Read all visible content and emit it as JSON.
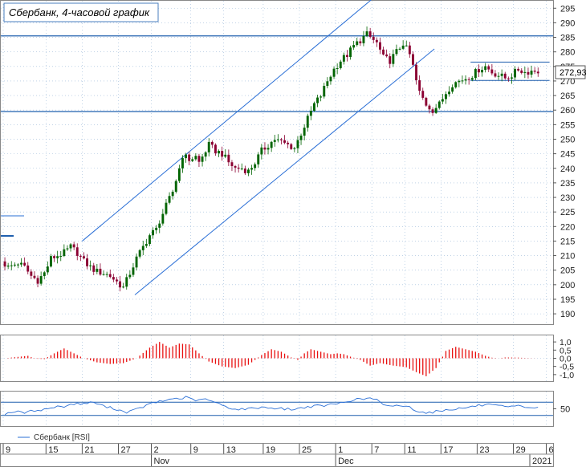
{
  "chart_data": {
    "type": "candlestick",
    "title": "Сбербанк, 4-часовой график",
    "instrument": "Сбербанк",
    "last_price_label": "272,93",
    "price_axis": {
      "min": 187,
      "max": 297,
      "ticks": [
        190,
        195,
        200,
        205,
        210,
        215,
        220,
        225,
        230,
        235,
        240,
        245,
        250,
        255,
        260,
        265,
        270,
        275,
        280,
        285,
        290,
        295
      ]
    },
    "horizontal_levels": [
      285.5,
      259.5
    ],
    "range_levels": [
      276.5,
      270.2
    ],
    "channel": {
      "upper": [
        [
          24,
          215
        ],
        [
          113,
          299
        ]
      ],
      "lower": [
        [
          40,
          196.5
        ],
        [
          131,
          281
        ]
      ]
    },
    "anchors": [
      [
        0,
        208
      ],
      [
        2,
        206
      ],
      [
        5,
        207.5
      ],
      [
        7,
        206
      ],
      [
        9,
        203
      ],
      [
        11,
        201.5
      ],
      [
        13,
        204
      ],
      [
        15,
        209
      ],
      [
        17,
        210
      ],
      [
        19,
        211
      ],
      [
        21,
        213
      ],
      [
        23,
        211
      ],
      [
        25,
        208
      ],
      [
        27,
        206
      ],
      [
        29,
        204.5
      ],
      [
        31,
        204
      ],
      [
        33,
        203
      ],
      [
        35,
        201
      ],
      [
        37,
        199
      ],
      [
        39,
        204
      ],
      [
        41,
        209
      ],
      [
        43,
        213
      ],
      [
        45,
        217
      ],
      [
        47,
        219
      ],
      [
        48,
        222
      ],
      [
        50,
        227
      ],
      [
        52,
        232
      ],
      [
        54,
        240
      ],
      [
        55,
        244.5
      ],
      [
        57,
        243
      ],
      [
        59,
        244
      ],
      [
        60,
        242
      ],
      [
        62,
        246
      ],
      [
        63,
        248
      ],
      [
        65,
        246
      ],
      [
        67,
        245
      ],
      [
        69,
        242
      ],
      [
        71,
        240
      ],
      [
        73,
        240
      ],
      [
        75,
        239
      ],
      [
        77,
        242
      ],
      [
        79,
        246
      ],
      [
        81,
        248
      ],
      [
        83,
        250
      ],
      [
        85,
        249
      ],
      [
        87,
        248
      ],
      [
        89,
        247
      ],
      [
        91,
        252
      ],
      [
        93,
        257
      ],
      [
        95,
        262
      ],
      [
        97,
        265
      ],
      [
        99,
        270
      ],
      [
        101,
        274
      ],
      [
        103,
        277
      ],
      [
        105,
        279
      ],
      [
        107,
        282
      ],
      [
        109,
        284
      ],
      [
        111,
        286
      ],
      [
        112,
        285
      ],
      [
        114,
        283
      ],
      [
        116,
        278
      ],
      [
        118,
        277
      ],
      [
        120,
        280
      ],
      [
        122,
        283
      ],
      [
        124,
        279
      ],
      [
        125,
        275
      ],
      [
        126,
        270
      ],
      [
        127,
        266
      ],
      [
        129,
        262
      ],
      [
        131,
        260
      ],
      [
        133,
        262
      ],
      [
        135,
        266
      ],
      [
        137,
        269
      ],
      [
        139,
        270
      ],
      [
        141,
        271
      ],
      [
        143,
        272
      ],
      [
        145,
        274
      ],
      [
        147,
        275
      ],
      [
        149,
        273
      ],
      [
        151,
        272
      ],
      [
        153,
        271
      ],
      [
        155,
        272
      ],
      [
        157,
        274
      ],
      [
        159,
        273
      ],
      [
        161,
        273.5
      ]
    ],
    "oscillator": {
      "min": -1.35,
      "max": 1.35,
      "ticks": [
        1.0,
        0.5,
        0.0,
        -0.5,
        -1.0
      ],
      "tick_labels": [
        "1,0",
        "0,5",
        "0,0",
        "-0,5",
        "-1,0"
      ],
      "knots": [
        [
          0,
          0
        ],
        [
          7,
          0.15
        ],
        [
          9,
          -0.02
        ],
        [
          12,
          -0.05
        ],
        [
          15,
          0.3
        ],
        [
          18,
          0.6
        ],
        [
          21,
          0.3
        ],
        [
          24,
          0
        ],
        [
          28,
          -0.25
        ],
        [
          32,
          -0.35
        ],
        [
          36,
          -0.3
        ],
        [
          40,
          0
        ],
        [
          44,
          0.65
        ],
        [
          47,
          1.0
        ],
        [
          50,
          0.65
        ],
        [
          53,
          0.9
        ],
        [
          56,
          0.85
        ],
        [
          59,
          0.3
        ],
        [
          62,
          -0.2
        ],
        [
          66,
          -0.5
        ],
        [
          70,
          -0.6
        ],
        [
          74,
          -0.4
        ],
        [
          78,
          0.2
        ],
        [
          81,
          0.55
        ],
        [
          84,
          0.4
        ],
        [
          87,
          0.05
        ],
        [
          89,
          -0.1
        ],
        [
          91,
          0.3
        ],
        [
          93,
          0.55
        ],
        [
          96,
          0.4
        ],
        [
          99,
          0.25
        ],
        [
          101,
          0.3
        ],
        [
          103,
          0.25
        ],
        [
          105,
          0.1
        ],
        [
          108,
          -0.1
        ],
        [
          111,
          -0.45
        ],
        [
          114,
          -0.3
        ],
        [
          118,
          -0.45
        ],
        [
          122,
          -0.55
        ],
        [
          125,
          -0.85
        ],
        [
          128,
          -1.1
        ],
        [
          131,
          -0.6
        ],
        [
          134,
          0.45
        ],
        [
          137,
          0.7
        ],
        [
          140,
          0.55
        ],
        [
          143,
          0.4
        ],
        [
          146,
          0.15
        ],
        [
          149,
          -0.02
        ],
        [
          152,
          0.05
        ],
        [
          156,
          0.04
        ],
        [
          158,
          0.02
        ],
        [
          162,
          0
        ]
      ]
    },
    "rsi": {
      "legend": "Сбербанк [RSI]",
      "min": 0,
      "max": 100,
      "upper_level": 70,
      "lower_level": 30,
      "tick_label": "50",
      "tick_value": 50,
      "knots": [
        [
          0,
          35
        ],
        [
          3,
          42
        ],
        [
          6,
          38
        ],
        [
          9,
          45
        ],
        [
          12,
          48
        ],
        [
          15,
          55
        ],
        [
          18,
          58
        ],
        [
          21,
          65
        ],
        [
          24,
          66
        ],
        [
          27,
          70
        ],
        [
          29,
          62
        ],
        [
          31,
          55
        ],
        [
          33,
          52
        ],
        [
          35,
          45
        ],
        [
          37,
          40
        ],
        [
          39,
          45
        ],
        [
          41,
          52
        ],
        [
          43,
          60
        ],
        [
          45,
          68
        ],
        [
          47,
          72
        ],
        [
          49,
          75
        ],
        [
          51,
          82
        ],
        [
          53,
          80
        ],
        [
          55,
          85
        ],
        [
          57,
          78
        ],
        [
          59,
          75
        ],
        [
          61,
          80
        ],
        [
          63,
          72
        ],
        [
          65,
          65
        ],
        [
          67,
          58
        ],
        [
          70,
          48
        ],
        [
          74,
          50
        ],
        [
          78,
          55
        ],
        [
          82,
          52
        ],
        [
          85,
          50
        ],
        [
          88,
          48
        ],
        [
          91,
          55
        ],
        [
          94,
          58
        ],
        [
          97,
          60
        ],
        [
          100,
          64
        ],
        [
          103,
          70
        ],
        [
          106,
          78
        ],
        [
          109,
          80
        ],
        [
          111,
          82
        ],
        [
          113,
          78
        ],
        [
          115,
          60
        ],
        [
          117,
          57
        ],
        [
          119,
          62
        ],
        [
          121,
          58
        ],
        [
          123,
          55
        ],
        [
          125,
          45
        ],
        [
          127,
          40
        ],
        [
          129,
          38
        ],
        [
          131,
          42
        ],
        [
          133,
          45
        ],
        [
          135,
          48
        ],
        [
          137,
          50
        ],
        [
          139,
          52
        ],
        [
          141,
          55
        ],
        [
          144,
          60
        ],
        [
          147,
          62
        ],
        [
          150,
          58
        ],
        [
          153,
          55
        ],
        [
          156,
          58
        ],
        [
          159,
          55
        ],
        [
          162,
          52
        ]
      ]
    },
    "x_axis": {
      "day_ticks": [
        {
          "label": "9",
          "bar": 0
        },
        {
          "label": "15",
          "bar": 13
        },
        {
          "label": "21",
          "bar": 24
        },
        {
          "label": "27",
          "bar": 35
        },
        {
          "label": "2",
          "bar": 45
        },
        {
          "label": "9",
          "bar": 57
        },
        {
          "label": "13",
          "bar": 67
        },
        {
          "label": "19",
          "bar": 79
        },
        {
          "label": "25",
          "bar": 90
        },
        {
          "label": "1",
          "bar": 101
        },
        {
          "label": "7",
          "bar": 112
        },
        {
          "label": "11",
          "bar": 122
        },
        {
          "label": "17",
          "bar": 133
        },
        {
          "label": "23",
          "bar": 144
        },
        {
          "label": "29",
          "bar": 155
        },
        {
          "label": "6",
          "bar": 165
        }
      ],
      "month_ticks": [
        {
          "label": "Nov",
          "bar": 45
        },
        {
          "label": "Dec",
          "bar": 101
        },
        {
          "label": "2021",
          "bar": 160
        }
      ]
    },
    "colors": {
      "up": "#006400",
      "down": "#8b0032",
      "osc": "#e81010",
      "rsi": "#2a6fd6",
      "level": "#1f5fae",
      "grid": "#9ab8d8"
    }
  }
}
